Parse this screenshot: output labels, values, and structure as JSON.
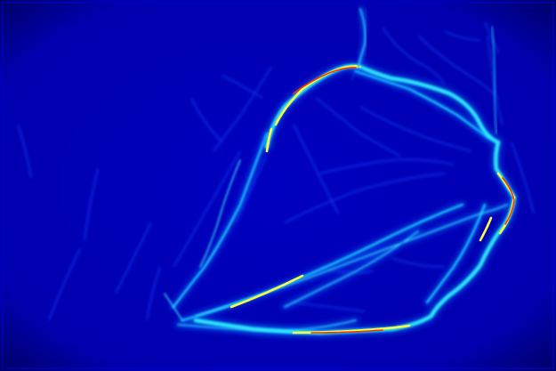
{
  "image": {
    "kind": "edge-probability heatmap",
    "colormap": [
      "#00008f",
      "#0000ff",
      "#00ffff",
      "#ffff00",
      "#ff0000"
    ],
    "background_color": "#0000b0",
    "vignette_color": "#00006a"
  }
}
